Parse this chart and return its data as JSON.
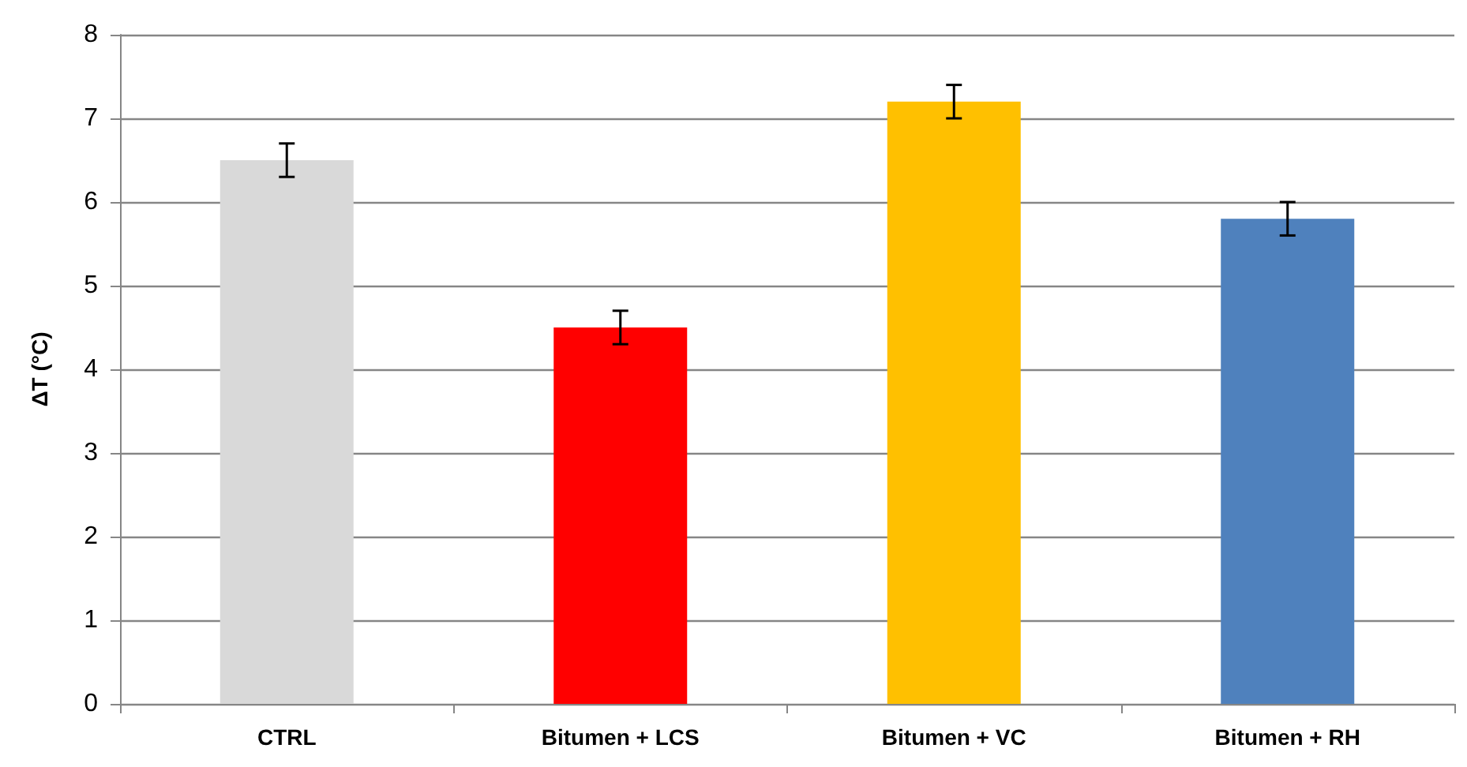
{
  "chart_data": {
    "type": "bar",
    "ylabel": "ΔT (°C)",
    "categories": [
      "CTRL",
      "Bitumen + LCS",
      "Bitumen + VC",
      "Bitumen + RH"
    ],
    "values": [
      6.5,
      4.5,
      7.2,
      5.8
    ],
    "colors": [
      "#d9d9d9",
      "#ff0000",
      "#ffc000",
      "#4f81bd"
    ],
    "errors": [
      0.2,
      0.2,
      0.2,
      0.2
    ],
    "ylim": [
      0,
      8
    ],
    "yticks": [
      0,
      1,
      2,
      3,
      4,
      5,
      6,
      7,
      8
    ],
    "grid": "y"
  }
}
